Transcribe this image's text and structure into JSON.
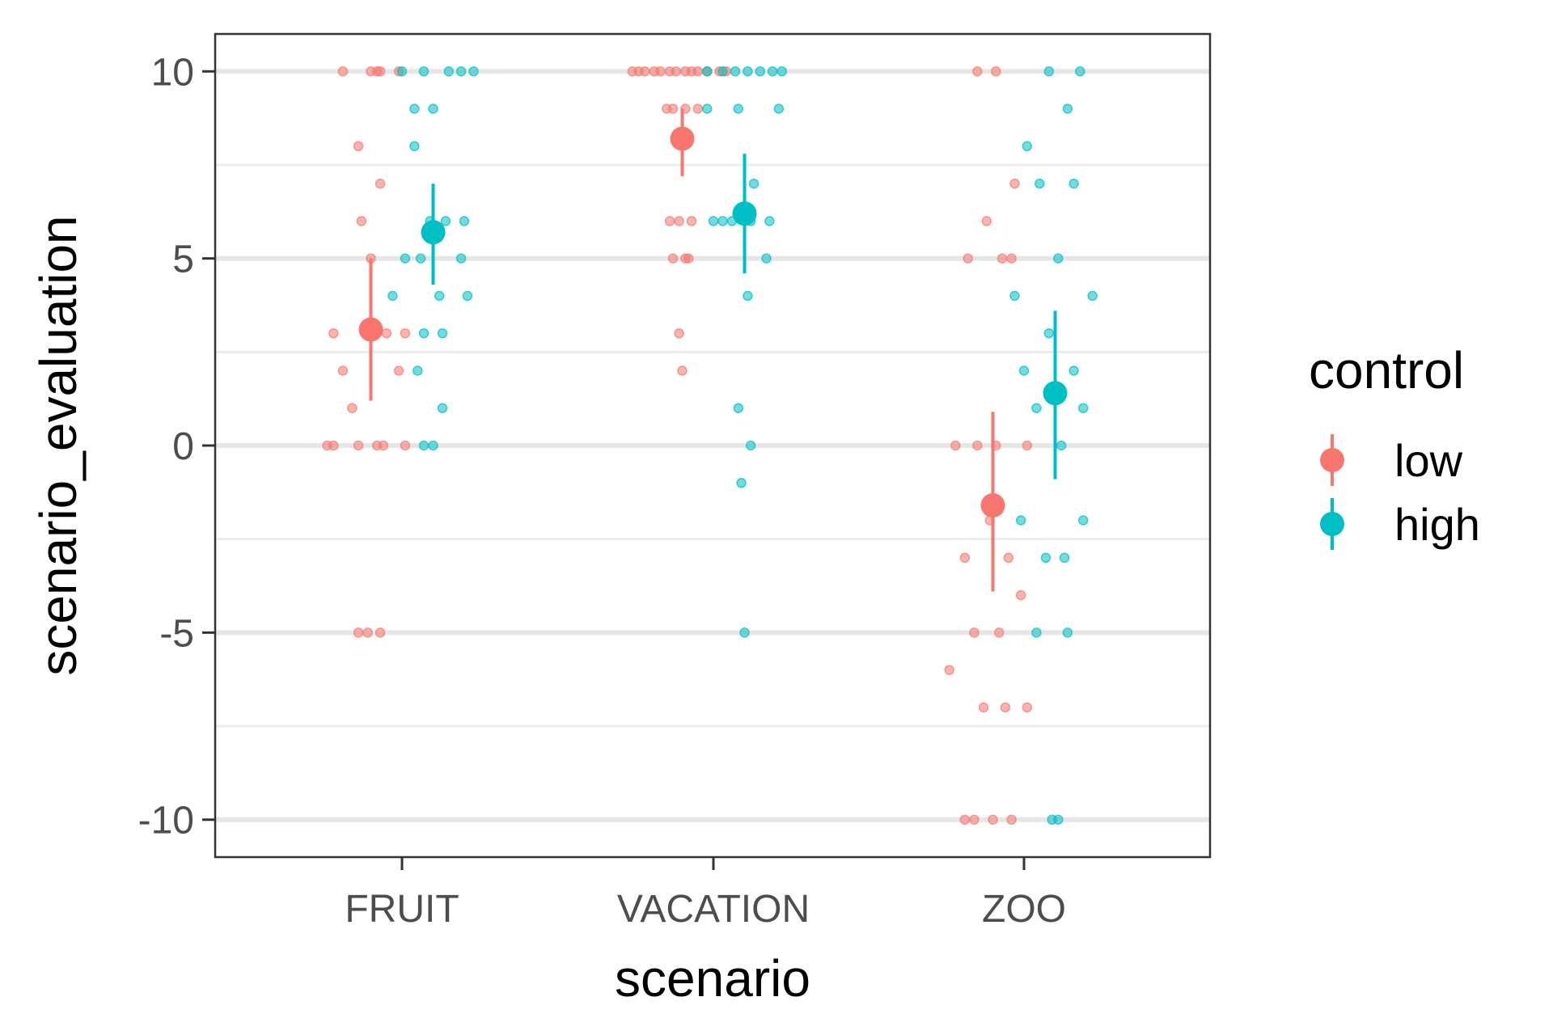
{
  "chart_data": {
    "type": "scatter",
    "subtype": "jittered points with mean and error bars",
    "title": "",
    "xlabel": "scenario",
    "ylabel": "scenario_evaluation",
    "categories": [
      "FRUIT",
      "VACATION",
      "ZOO"
    ],
    "ylim": [
      -11,
      11
    ],
    "yticks": [
      10,
      5,
      0,
      -5,
      -10
    ],
    "ytick_labels": [
      "10",
      "5",
      "0",
      "-5",
      "-10"
    ],
    "grid": "horizontal only",
    "legend": {
      "title": "control",
      "position": "right",
      "entries": [
        {
          "label": "low",
          "color": "#F8766D"
        },
        {
          "label": "high",
          "color": "#00BFC4"
        }
      ]
    },
    "series": [
      {
        "name": "low",
        "color": "#F8766D",
        "means": [
          3.1,
          8.2,
          -1.6
        ],
        "ci": [
          [
            1.2,
            5.0
          ],
          [
            7.2,
            9.0
          ],
          [
            -3.9,
            0.9
          ]
        ],
        "points": [
          [
            {
              "dx": -0.09,
              "y": 10
            },
            {
              "dx": 0.0,
              "y": 10
            },
            {
              "dx": 0.02,
              "y": 10
            },
            {
              "dx": 0.03,
              "y": 10
            },
            {
              "dx": 0.09,
              "y": 10
            },
            {
              "dx": -0.04,
              "y": 8
            },
            {
              "dx": 0.03,
              "y": 7
            },
            {
              "dx": -0.03,
              "y": 6
            },
            {
              "dx": 0.0,
              "y": 5
            },
            {
              "dx": -0.12,
              "y": 3
            },
            {
              "dx": 0.05,
              "y": 3
            },
            {
              "dx": 0.11,
              "y": 3
            },
            {
              "dx": -0.09,
              "y": 2
            },
            {
              "dx": 0.09,
              "y": 2
            },
            {
              "dx": -0.06,
              "y": 1
            },
            {
              "dx": -0.14,
              "y": 0
            },
            {
              "dx": -0.12,
              "y": 0
            },
            {
              "dx": -0.04,
              "y": 0
            },
            {
              "dx": 0.02,
              "y": 0
            },
            {
              "dx": 0.04,
              "y": 0
            },
            {
              "dx": 0.11,
              "y": 0
            },
            {
              "dx": -0.04,
              "y": -5
            },
            {
              "dx": -0.01,
              "y": -5
            },
            {
              "dx": 0.03,
              "y": -5
            }
          ],
          [
            {
              "dx": -0.16,
              "y": 10
            },
            {
              "dx": -0.14,
              "y": 10
            },
            {
              "dx": -0.12,
              "y": 10
            },
            {
              "dx": -0.09,
              "y": 10
            },
            {
              "dx": -0.07,
              "y": 10
            },
            {
              "dx": -0.04,
              "y": 10
            },
            {
              "dx": -0.02,
              "y": 10
            },
            {
              "dx": 0.01,
              "y": 10
            },
            {
              "dx": 0.03,
              "y": 10
            },
            {
              "dx": 0.05,
              "y": 10
            },
            {
              "dx": 0.08,
              "y": 10
            },
            {
              "dx": 0.12,
              "y": 10
            },
            {
              "dx": 0.14,
              "y": 10
            },
            {
              "dx": -0.05,
              "y": 9
            },
            {
              "dx": -0.03,
              "y": 9
            },
            {
              "dx": 0.01,
              "y": 9
            },
            {
              "dx": 0.05,
              "y": 9
            },
            {
              "dx": -0.04,
              "y": 6
            },
            {
              "dx": -0.01,
              "y": 6
            },
            {
              "dx": 0.03,
              "y": 6
            },
            {
              "dx": -0.03,
              "y": 5
            },
            {
              "dx": 0.01,
              "y": 5
            },
            {
              "dx": 0.02,
              "y": 5
            },
            {
              "dx": -0.01,
              "y": 3
            },
            {
              "dx": 0.0,
              "y": 2
            }
          ],
          [
            {
              "dx": -0.05,
              "y": 10
            },
            {
              "dx": 0.01,
              "y": 10
            },
            {
              "dx": 0.07,
              "y": 7
            },
            {
              "dx": -0.02,
              "y": 6
            },
            {
              "dx": -0.08,
              "y": 5
            },
            {
              "dx": 0.03,
              "y": 5
            },
            {
              "dx": 0.06,
              "y": 5
            },
            {
              "dx": -0.12,
              "y": 0
            },
            {
              "dx": -0.05,
              "y": 0
            },
            {
              "dx": 0.01,
              "y": 0
            },
            {
              "dx": 0.11,
              "y": 0
            },
            {
              "dx": -0.01,
              "y": -2
            },
            {
              "dx": -0.09,
              "y": -3
            },
            {
              "dx": 0.05,
              "y": -3
            },
            {
              "dx": 0.09,
              "y": -4
            },
            {
              "dx": -0.06,
              "y": -5
            },
            {
              "dx": 0.02,
              "y": -5
            },
            {
              "dx": -0.14,
              "y": -6
            },
            {
              "dx": -0.03,
              "y": -7
            },
            {
              "dx": 0.04,
              "y": -7
            },
            {
              "dx": 0.11,
              "y": -7
            },
            {
              "dx": -0.09,
              "y": -10
            },
            {
              "dx": -0.06,
              "y": -10
            },
            {
              "dx": 0.0,
              "y": -10
            },
            {
              "dx": 0.06,
              "y": -10
            }
          ]
        ]
      },
      {
        "name": "high",
        "color": "#00BFC4",
        "means": [
          5.7,
          6.2,
          1.4
        ],
        "ci": [
          [
            4.3,
            7.0
          ],
          [
            4.6,
            7.8
          ],
          [
            -0.9,
            3.6
          ]
        ],
        "points": [
          [
            {
              "dx": -0.1,
              "y": 10
            },
            {
              "dx": -0.03,
              "y": 10
            },
            {
              "dx": 0.05,
              "y": 10
            },
            {
              "dx": 0.09,
              "y": 10
            },
            {
              "dx": 0.13,
              "y": 10
            },
            {
              "dx": -0.06,
              "y": 9
            },
            {
              "dx": 0.0,
              "y": 9
            },
            {
              "dx": -0.06,
              "y": 8
            },
            {
              "dx": -0.01,
              "y": 6
            },
            {
              "dx": 0.04,
              "y": 6
            },
            {
              "dx": 0.1,
              "y": 6
            },
            {
              "dx": -0.09,
              "y": 5
            },
            {
              "dx": -0.04,
              "y": 5
            },
            {
              "dx": 0.09,
              "y": 5
            },
            {
              "dx": -0.13,
              "y": 4
            },
            {
              "dx": 0.02,
              "y": 4
            },
            {
              "dx": 0.11,
              "y": 4
            },
            {
              "dx": -0.03,
              "y": 3
            },
            {
              "dx": 0.03,
              "y": 3
            },
            {
              "dx": -0.05,
              "y": 2
            },
            {
              "dx": 0.03,
              "y": 1
            },
            {
              "dx": -0.03,
              "y": 0
            },
            {
              "dx": 0.0,
              "y": 0
            }
          ],
          [
            {
              "dx": -0.12,
              "y": 10
            },
            {
              "dx": -0.07,
              "y": 10
            },
            {
              "dx": -0.03,
              "y": 10
            },
            {
              "dx": 0.01,
              "y": 10
            },
            {
              "dx": 0.05,
              "y": 10
            },
            {
              "dx": 0.09,
              "y": 10
            },
            {
              "dx": 0.12,
              "y": 10
            },
            {
              "dx": -0.12,
              "y": 9
            },
            {
              "dx": -0.02,
              "y": 9
            },
            {
              "dx": 0.11,
              "y": 9
            },
            {
              "dx": 0.03,
              "y": 7
            },
            {
              "dx": -0.1,
              "y": 6
            },
            {
              "dx": -0.07,
              "y": 6
            },
            {
              "dx": -0.04,
              "y": 6
            },
            {
              "dx": 0.02,
              "y": 6
            },
            {
              "dx": 0.08,
              "y": 6
            },
            {
              "dx": 0.07,
              "y": 5
            },
            {
              "dx": 0.01,
              "y": 4
            },
            {
              "dx": -0.02,
              "y": 1
            },
            {
              "dx": 0.02,
              "y": 0
            },
            {
              "dx": -0.01,
              "y": -1
            },
            {
              "dx": 0.0,
              "y": -5
            }
          ],
          [
            {
              "dx": -0.02,
              "y": 10
            },
            {
              "dx": 0.08,
              "y": 10
            },
            {
              "dx": 0.04,
              "y": 9
            },
            {
              "dx": -0.09,
              "y": 8
            },
            {
              "dx": -0.05,
              "y": 7
            },
            {
              "dx": 0.06,
              "y": 7
            },
            {
              "dx": 0.01,
              "y": 5
            },
            {
              "dx": -0.13,
              "y": 4
            },
            {
              "dx": 0.12,
              "y": 4
            },
            {
              "dx": -0.02,
              "y": 3
            },
            {
              "dx": -0.1,
              "y": 2
            },
            {
              "dx": 0.06,
              "y": 2
            },
            {
              "dx": -0.06,
              "y": 1
            },
            {
              "dx": 0.09,
              "y": 1
            },
            {
              "dx": 0.02,
              "y": 0
            },
            {
              "dx": -0.11,
              "y": -2
            },
            {
              "dx": 0.09,
              "y": -2
            },
            {
              "dx": -0.03,
              "y": -3
            },
            {
              "dx": 0.03,
              "y": -3
            },
            {
              "dx": -0.06,
              "y": -5
            },
            {
              "dx": 0.04,
              "y": -5
            },
            {
              "dx": -0.01,
              "y": -10
            },
            {
              "dx": 0.01,
              "y": -10
            }
          ]
        ]
      }
    ]
  }
}
